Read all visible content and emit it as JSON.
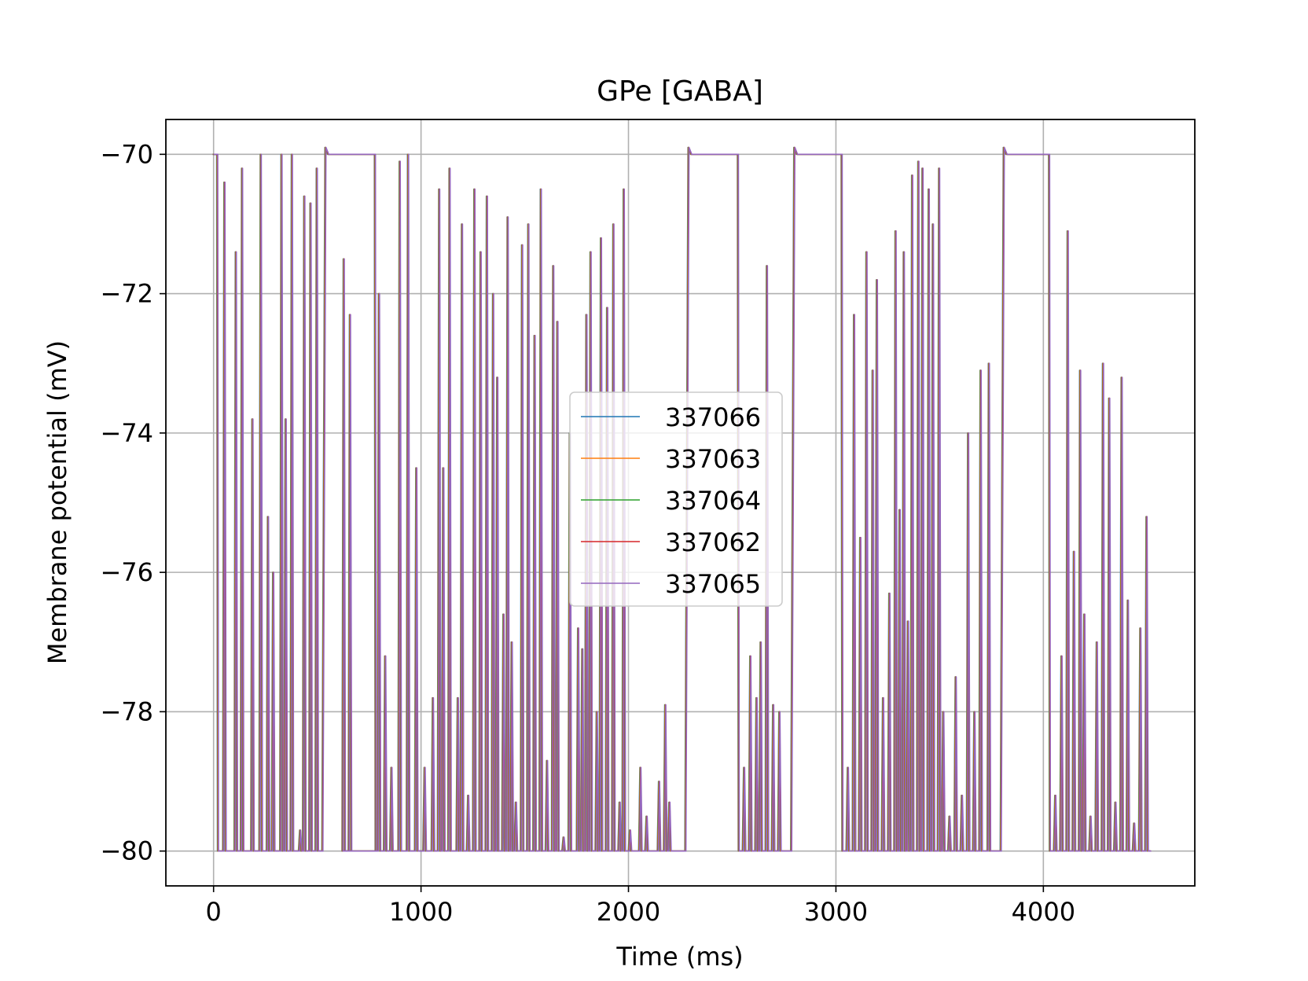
{
  "chart_data": {
    "type": "line",
    "title": "GPe [GABA]",
    "xlabel": "Time (ms)",
    "ylabel": "Membrane potential (mV)",
    "xlim": [
      -230,
      4730
    ],
    "ylim": [
      -80.5,
      -69.5
    ],
    "xticks": [
      0,
      1000,
      2000,
      3000,
      4000
    ],
    "xtick_labels": [
      "0",
      "1000",
      "2000",
      "3000",
      "4000"
    ],
    "yticks": [
      -70,
      -72,
      -74,
      -76,
      -78,
      -80
    ],
    "ytick_labels": [
      "−70",
      "−72",
      "−74",
      "−76",
      "−78",
      "−80"
    ],
    "grid": true,
    "legend_position": "center",
    "series": [
      {
        "name": "337066",
        "color": "#1f77b4"
      },
      {
        "name": "337063",
        "color": "#ff7f0e"
      },
      {
        "name": "337064",
        "color": "#2ca02c"
      },
      {
        "name": "337062",
        "color": "#d62728"
      },
      {
        "name": "337065",
        "color": "#9467bd"
      }
    ],
    "common_trace": {
      "baseline": -80,
      "plateau": -70,
      "plateaus": [
        [
          0,
          20
        ],
        [
          530,
          780
        ],
        [
          2280,
          2530
        ],
        [
          2790,
          3030
        ],
        [
          3800,
          4030
        ]
      ],
      "spikes": [
        [
          55,
          -70.4
        ],
        [
          110,
          -71.4
        ],
        [
          140,
          -70.2
        ],
        [
          190,
          -73.8
        ],
        [
          230,
          -70.0
        ],
        [
          265,
          -75.2
        ],
        [
          290,
          -76.0
        ],
        [
          330,
          -70.0
        ],
        [
          350,
          -73.8
        ],
        [
          380,
          -70.0
        ],
        [
          420,
          -79.7
        ],
        [
          440,
          -70.6
        ],
        [
          470,
          -70.7
        ],
        [
          500,
          -70.2
        ],
        [
          630,
          -71.5
        ],
        [
          660,
          -72.3
        ],
        [
          800,
          -72.0
        ],
        [
          830,
          -77.2
        ],
        [
          860,
          -78.8
        ],
        [
          900,
          -70.1
        ],
        [
          940,
          -70.0
        ],
        [
          980,
          -74.5
        ],
        [
          1020,
          -78.8
        ],
        [
          1060,
          -77.8
        ],
        [
          1090,
          -70.5
        ],
        [
          1110,
          -74.5
        ],
        [
          1140,
          -70.2
        ],
        [
          1180,
          -77.8
        ],
        [
          1200,
          -71.0
        ],
        [
          1230,
          -79.2
        ],
        [
          1260,
          -70.5
        ],
        [
          1290,
          -71.4
        ],
        [
          1320,
          -70.6
        ],
        [
          1350,
          -72.0
        ],
        [
          1370,
          -73.2
        ],
        [
          1400,
          -76.6
        ],
        [
          1420,
          -70.9
        ],
        [
          1440,
          -77.0
        ],
        [
          1460,
          -79.3
        ],
        [
          1490,
          -71.3
        ],
        [
          1520,
          -71.0
        ],
        [
          1550,
          -72.6
        ],
        [
          1580,
          -70.5
        ],
        [
          1610,
          -78.7
        ],
        [
          1640,
          -71.6
        ],
        [
          1660,
          -72.4
        ],
        [
          1690,
          -79.8
        ],
        [
          1720,
          -74.0
        ],
        [
          1760,
          -76.8
        ],
        [
          1780,
          -77.1
        ],
        [
          1800,
          -72.3
        ],
        [
          1820,
          -71.4
        ],
        [
          1850,
          -78.0
        ],
        [
          1870,
          -71.2
        ],
        [
          1900,
          -72.2
        ],
        [
          1930,
          -71.0
        ],
        [
          1960,
          -79.3
        ],
        [
          1980,
          -70.5
        ],
        [
          2010,
          -79.7
        ],
        [
          2060,
          -78.8
        ],
        [
          2090,
          -79.5
        ],
        [
          2120,
          -80.0
        ],
        [
          2150,
          -79.0
        ],
        [
          2180,
          -77.9
        ],
        [
          2200,
          -79.3
        ],
        [
          2560,
          -78.8
        ],
        [
          2590,
          -77.2
        ],
        [
          2620,
          -77.8
        ],
        [
          2640,
          -77.0
        ],
        [
          2670,
          -71.6
        ],
        [
          2700,
          -77.9
        ],
        [
          2730,
          -78.0
        ],
        [
          3060,
          -78.8
        ],
        [
          3090,
          -72.3
        ],
        [
          3120,
          -75.5
        ],
        [
          3150,
          -71.4
        ],
        [
          3180,
          -73.1
        ],
        [
          3200,
          -71.8
        ],
        [
          3230,
          -77.8
        ],
        [
          3260,
          -76.3
        ],
        [
          3290,
          -71.1
        ],
        [
          3310,
          -75.1
        ],
        [
          3330,
          -71.4
        ],
        [
          3350,
          -76.7
        ],
        [
          3370,
          -70.3
        ],
        [
          3400,
          -70.1
        ],
        [
          3420,
          -70.2
        ],
        [
          3450,
          -70.5
        ],
        [
          3470,
          -71.0
        ],
        [
          3500,
          -70.2
        ],
        [
          3520,
          -78.0
        ],
        [
          3550,
          -79.5
        ],
        [
          3580,
          -77.5
        ],
        [
          3610,
          -79.2
        ],
        [
          3640,
          -74.0
        ],
        [
          3670,
          -78.0
        ],
        [
          3700,
          -73.1
        ],
        [
          3740,
          -73.0
        ],
        [
          4060,
          -79.2
        ],
        [
          4090,
          -77.2
        ],
        [
          4120,
          -71.1
        ],
        [
          4150,
          -75.7
        ],
        [
          4180,
          -73.1
        ],
        [
          4200,
          -76.6
        ],
        [
          4230,
          -79.5
        ],
        [
          4260,
          -77.0
        ],
        [
          4290,
          -73.0
        ],
        [
          4320,
          -73.5
        ],
        [
          4350,
          -79.3
        ],
        [
          4380,
          -73.2
        ],
        [
          4410,
          -76.4
        ],
        [
          4440,
          -79.6
        ],
        [
          4470,
          -76.8
        ],
        [
          4500,
          -75.2
        ]
      ]
    }
  }
}
